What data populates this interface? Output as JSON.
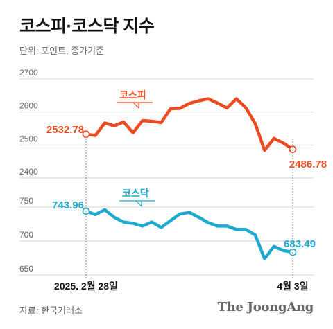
{
  "title": "코스피·코스닥 지수",
  "unit_label": "단위: 포인트, 종가기준",
  "source": "자료: 한국거래소",
  "brand": "The JoongAng",
  "colors": {
    "kospi": "#ee4a1f",
    "kosdaq": "#1ea9cf",
    "grid": "#d0d0d0",
    "axis": "#888888"
  },
  "chart_data": [
    {
      "type": "line",
      "series": [
        {
          "name": "코스피",
          "values": [
            2532.78,
            2529,
            2567,
            2558,
            2570,
            2537,
            2574,
            2572,
            2568,
            2610,
            2611,
            2626,
            2634,
            2640,
            2627,
            2612,
            2640,
            2613,
            2565,
            2484,
            2520,
            2506,
            2486.78
          ]
        }
      ],
      "x": [
        "2025. 2월 28일",
        "",
        "",
        "",
        "",
        "",
        "",
        "",
        "",
        "",
        "",
        "",
        "",
        "",
        "",
        "",
        "",
        "",
        "",
        "",
        "",
        "",
        "4월 3일"
      ],
      "ylim": [
        2400,
        2700
      ],
      "yticks": [
        "2400",
        "2500",
        "2600",
        "2700"
      ],
      "annotations": {
        "start": "2532.78",
        "end": "2486.78"
      }
    },
    {
      "type": "line",
      "series": [
        {
          "name": "코스닥",
          "values": [
            743.96,
            739,
            746,
            735,
            728,
            726,
            722,
            728,
            720,
            730,
            740,
            742,
            735,
            727,
            722,
            722,
            717,
            717,
            709,
            674,
            692,
            686,
            683.49
          ]
        }
      ],
      "x": [
        "2025. 2월 28일",
        "",
        "",
        "",
        "",
        "",
        "",
        "",
        "",
        "",
        "",
        "",
        "",
        "",
        "",
        "",
        "",
        "",
        "",
        "",
        "",
        "",
        "4월 3일"
      ],
      "ylim": [
        650,
        750
      ],
      "yticks": [
        "650",
        "700",
        "750"
      ],
      "annotations": {
        "start": "743.96",
        "end": "683.49"
      }
    }
  ],
  "x_labels": {
    "start": "2025. 2월 28일",
    "end": "4월 3일"
  }
}
